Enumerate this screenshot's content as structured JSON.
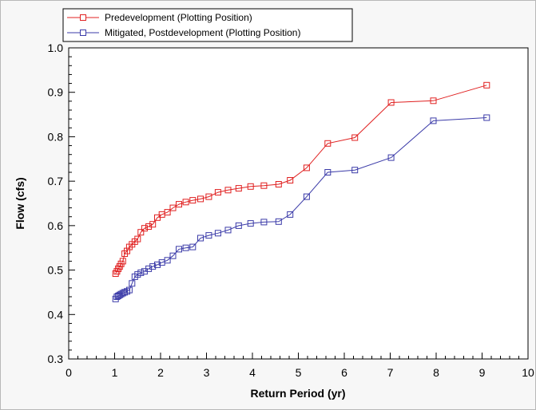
{
  "chart_data": {
    "type": "line",
    "xlabel": "Return Period (yr)",
    "ylabel": "Flow (cfs)",
    "xlim": [
      0,
      10
    ],
    "ylim": [
      0.3,
      1.0
    ],
    "xticks": [
      "0",
      "1",
      "2",
      "3",
      "4",
      "5",
      "6",
      "7",
      "8",
      "9",
      "10"
    ],
    "yticks": [
      "0.3",
      "0.4",
      "0.5",
      "0.6",
      "0.7",
      "0.8",
      "0.9",
      "1.0"
    ],
    "grid": false,
    "legend": "top-left",
    "marker": "square",
    "series": [
      {
        "name": "Predevelopment (Plotting Position)",
        "color": "#e02020",
        "x": [
          1.02,
          1.05,
          1.08,
          1.11,
          1.14,
          1.18,
          1.22,
          1.27,
          1.32,
          1.38,
          1.44,
          1.5,
          1.57,
          1.65,
          1.74,
          1.83,
          1.93,
          2.03,
          2.15,
          2.27,
          2.4,
          2.55,
          2.7,
          2.87,
          3.05,
          3.25,
          3.47,
          3.7,
          3.96,
          4.25,
          4.57,
          4.82,
          5.18,
          5.64,
          6.23,
          7.02,
          7.94,
          9.1
        ],
        "y": [
          0.492,
          0.497,
          0.503,
          0.508,
          0.514,
          0.52,
          0.537,
          0.543,
          0.552,
          0.558,
          0.564,
          0.57,
          0.585,
          0.594,
          0.598,
          0.603,
          0.618,
          0.625,
          0.63,
          0.64,
          0.648,
          0.653,
          0.657,
          0.66,
          0.665,
          0.675,
          0.68,
          0.684,
          0.688,
          0.69,
          0.693,
          0.702,
          0.73,
          0.785,
          0.798,
          0.877,
          0.881,
          0.916
        ]
      },
      {
        "name": "Mitigated, Postdevelopment (Plotting Position)",
        "color": "#3b3ba8",
        "x": [
          1.02,
          1.05,
          1.08,
          1.11,
          1.14,
          1.18,
          1.22,
          1.27,
          1.32,
          1.38,
          1.44,
          1.5,
          1.57,
          1.65,
          1.74,
          1.83,
          1.93,
          2.03,
          2.15,
          2.27,
          2.4,
          2.55,
          2.7,
          2.87,
          3.05,
          3.25,
          3.47,
          3.7,
          3.96,
          4.25,
          4.57,
          4.82,
          5.18,
          5.64,
          6.23,
          7.02,
          7.94,
          9.1
        ],
        "y": [
          0.435,
          0.44,
          0.442,
          0.444,
          0.446,
          0.448,
          0.45,
          0.452,
          0.455,
          0.47,
          0.485,
          0.49,
          0.494,
          0.497,
          0.503,
          0.508,
          0.512,
          0.517,
          0.522,
          0.532,
          0.547,
          0.55,
          0.552,
          0.572,
          0.578,
          0.583,
          0.59,
          0.6,
          0.605,
          0.608,
          0.609,
          0.625,
          0.665,
          0.72,
          0.725,
          0.753,
          0.836,
          0.843
        ]
      }
    ]
  }
}
